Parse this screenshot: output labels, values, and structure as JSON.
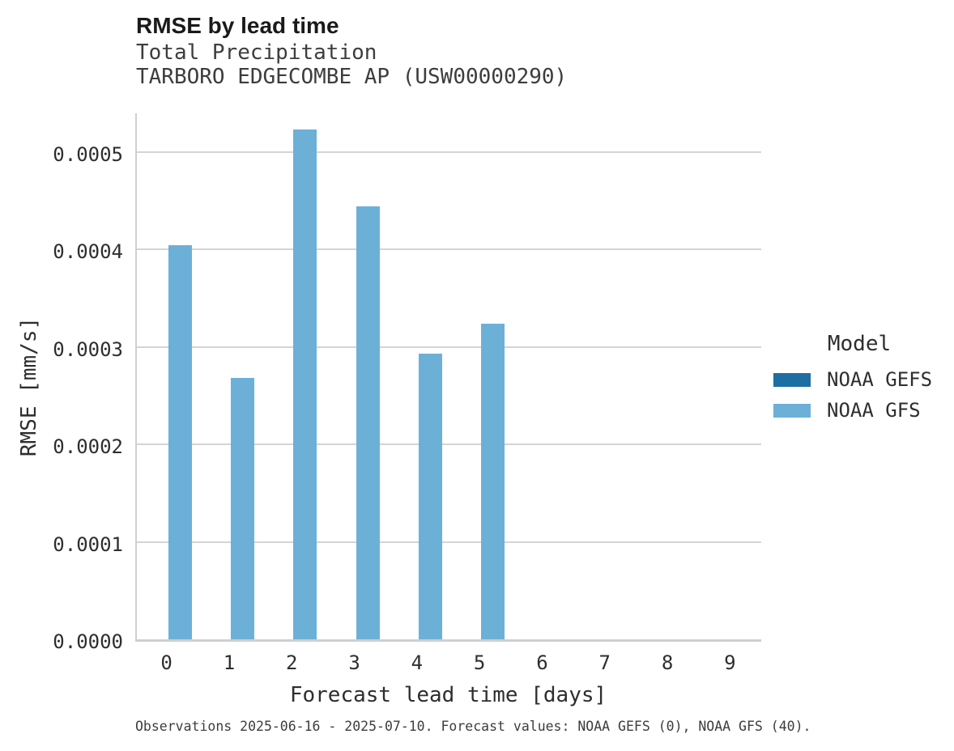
{
  "header": {
    "title": "RMSE by lead time",
    "subtitle_line1": "Total Precipitation",
    "subtitle_line2": "TARBORO EDGECOMBE AP (USW00000290)"
  },
  "chart_data": {
    "type": "bar",
    "title": "RMSE by lead time",
    "subtitle": [
      "Total Precipitation",
      "TARBORO EDGECOMBE AP (USW00000290)"
    ],
    "xlabel": "Forecast lead time [days]",
    "ylabel": "RMSE [mm/s]",
    "categories": [
      "0",
      "1",
      "2",
      "3",
      "4",
      "5",
      "6",
      "7",
      "8",
      "9"
    ],
    "series": [
      {
        "name": "NOAA GEFS",
        "color": "#1d6fa3",
        "values": [
          null,
          null,
          null,
          null,
          null,
          null,
          null,
          null,
          null,
          null
        ]
      },
      {
        "name": "NOAA GFS",
        "color": "#6cb0d8",
        "values": [
          0.000404,
          0.000268,
          0.000523,
          0.000444,
          0.000293,
          0.000324,
          null,
          null,
          null,
          null
        ]
      }
    ],
    "ylim": [
      0,
      0.000542
    ],
    "yticks": [
      0,
      0.0001,
      0.0002,
      0.0003,
      0.0004,
      0.0005
    ],
    "ytick_labels": [
      "0.0000",
      "0.0001",
      "0.0002",
      "0.0003",
      "0.0004",
      "0.0005"
    ],
    "grid": true,
    "legend_position": "right",
    "legend_title": "Model"
  },
  "legend": {
    "title": "Model",
    "items": [
      {
        "label": "NOAA GEFS",
        "color": "#1d6fa3"
      },
      {
        "label": "NOAA GFS",
        "color": "#6cb0d8"
      }
    ]
  },
  "axes": {
    "x_title": "Forecast lead time [days]",
    "y_title": "RMSE [mm/s]"
  },
  "caption": "Observations 2025-06-16 - 2025-07-10. Forecast values: NOAA GEFS (0), NOAA GFS (40).",
  "colors": {
    "bar_gfs": "#6cb0d8",
    "bar_gefs": "#1d6fa3",
    "gridline": "#d4d4d4",
    "axis_line": "#cfcfcf",
    "text": "#2e2e2e"
  }
}
